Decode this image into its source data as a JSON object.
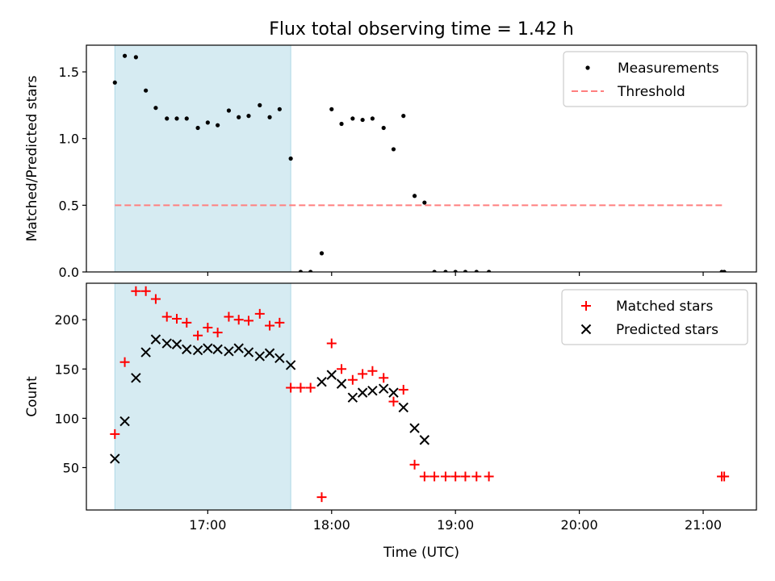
{
  "title": "Flux total observing time = 1.42 h",
  "chart_data": [
    {
      "type": "scatter",
      "ylabel": "Matched/Predicted stars",
      "xlabel": "",
      "xlim": [
        16.02,
        21.43
      ],
      "ylim": [
        0,
        1.7
      ],
      "yticks": [
        {
          "v": 0,
          "label": "0.0"
        },
        {
          "v": 0.5,
          "label": "0.5"
        },
        {
          "v": 1,
          "label": "1.0"
        },
        {
          "v": 1.5,
          "label": "1.5"
        }
      ],
      "shaded_span": [
        16.25,
        17.67
      ],
      "threshold": {
        "name": "Threshold",
        "value": 0.5,
        "x_range": [
          16.25,
          21.17
        ],
        "color": "#ff7f7f"
      },
      "legend": {
        "placement": "top-right",
        "items": [
          {
            "label": "Measurements",
            "marker": "dot"
          },
          {
            "label": "Threshold",
            "marker": "dash"
          }
        ]
      },
      "series": [
        {
          "name": "Measurements",
          "color": "#000000",
          "x": [
            16.25,
            16.33,
            16.42,
            16.5,
            16.58,
            16.67,
            16.75,
            16.83,
            16.92,
            17.0,
            17.08,
            17.17,
            17.25,
            17.33,
            17.42,
            17.5,
            17.58,
            17.67,
            17.75,
            17.83,
            17.92,
            18.0,
            18.08,
            18.17,
            18.25,
            18.33,
            18.42,
            18.5,
            18.58,
            18.67,
            18.75,
            18.83,
            18.92,
            19.0,
            19.08,
            19.17,
            19.27,
            21.15,
            21.17
          ],
          "y": [
            1.42,
            1.62,
            1.61,
            1.36,
            1.23,
            1.15,
            1.15,
            1.15,
            1.08,
            1.12,
            1.1,
            1.21,
            1.16,
            1.17,
            1.25,
            1.16,
            1.22,
            0.85,
            0.0,
            0.0,
            0.14,
            1.22,
            1.11,
            1.15,
            1.14,
            1.15,
            1.08,
            0.92,
            1.17,
            0.57,
            0.52,
            0.0,
            0.0,
            0.0,
            0.0,
            0.0,
            0.0,
            0.0,
            0.0
          ]
        }
      ]
    },
    {
      "type": "scatter",
      "ylabel": "Count",
      "xlabel": "Time (UTC)",
      "xlim": [
        16.02,
        21.43
      ],
      "ylim": [
        7,
        237
      ],
      "yticks": [
        {
          "v": 50,
          "label": "50"
        },
        {
          "v": 100,
          "label": "100"
        },
        {
          "v": 150,
          "label": "150"
        },
        {
          "v": 200,
          "label": "200"
        }
      ],
      "xticks": [
        {
          "v": 17,
          "label": "17:00"
        },
        {
          "v": 18,
          "label": "18:00"
        },
        {
          "v": 19,
          "label": "19:00"
        },
        {
          "v": 20,
          "label": "20:00"
        },
        {
          "v": 21,
          "label": "21:00"
        }
      ],
      "shaded_span": [
        16.25,
        17.67
      ],
      "legend": {
        "placement": "top-right",
        "items": [
          {
            "label": "Matched stars",
            "marker": "plus"
          },
          {
            "label": "Predicted stars",
            "marker": "x"
          }
        ]
      },
      "series": [
        {
          "name": "Matched stars",
          "color": "#ff0000",
          "x": [
            16.25,
            16.33,
            16.42,
            16.5,
            16.58,
            16.67,
            16.75,
            16.83,
            16.92,
            17.0,
            17.08,
            17.17,
            17.25,
            17.33,
            17.42,
            17.5,
            17.58,
            17.67,
            17.75,
            17.83,
            17.92,
            18.0,
            18.08,
            18.17,
            18.25,
            18.33,
            18.42,
            18.5,
            18.58,
            18.67,
            18.75,
            18.83,
            18.92,
            19.0,
            19.08,
            19.17,
            19.27,
            21.15,
            21.17
          ],
          "y": [
            84,
            157,
            229,
            229,
            221,
            203,
            201,
            197,
            184,
            192,
            187,
            203,
            200,
            199,
            206,
            194,
            197,
            131,
            131,
            131,
            20,
            176,
            150,
            139,
            145,
            148,
            141,
            117,
            129,
            53,
            41,
            41,
            41,
            41,
            41,
            41,
            41,
            41,
            41
          ]
        },
        {
          "name": "Predicted stars",
          "color": "#000000",
          "x": [
            16.25,
            16.33,
            16.42,
            16.5,
            16.58,
            16.67,
            16.75,
            16.83,
            16.92,
            17.0,
            17.08,
            17.17,
            17.25,
            17.33,
            17.42,
            17.5,
            17.58,
            17.67,
            17.92,
            18.0,
            18.08,
            18.17,
            18.25,
            18.33,
            18.42,
            18.5,
            18.58,
            18.67,
            18.75
          ],
          "y": [
            59,
            97,
            141,
            167,
            180,
            176,
            175,
            170,
            169,
            171,
            170,
            168,
            171,
            167,
            163,
            166,
            161,
            154,
            137,
            144,
            135,
            121,
            126,
            128,
            130,
            126,
            111,
            90,
            78
          ]
        }
      ]
    }
  ]
}
